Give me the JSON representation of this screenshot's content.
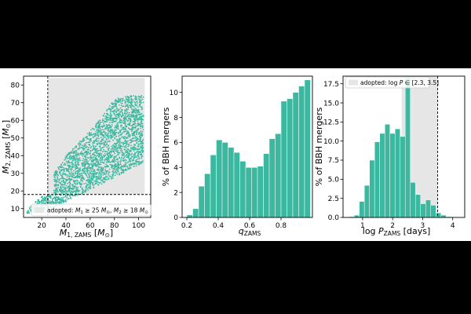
{
  "figure": {
    "background": "#000000",
    "panel_background": "#ffffff"
  },
  "chart_data": [
    {
      "type": "scatter",
      "xlabel": "M1,ZAMS [M⊙]",
      "ylabel": "M2,ZAMS [M⊙]",
      "xlim": [
        5,
        110
      ],
      "ylim": [
        5,
        85
      ],
      "xticks": [
        20,
        40,
        60,
        80,
        100
      ],
      "yticks": [
        10,
        20,
        30,
        40,
        50,
        60,
        70,
        80
      ],
      "color": "#3cb8a0",
      "adopted_region": {
        "x": [
          25,
          105
        ],
        "y": [
          18,
          84
        ],
        "color": "#e6e6e6"
      },
      "cut_lines": {
        "x": 25,
        "y": 18
      },
      "legend": {
        "text": "adopted: M1 ≥ 25 M⊙, M2 ≥ 18 M⊙",
        "loc": "lower right"
      },
      "point_clouds": [
        {
          "name": "main wedge",
          "polygon": [
            [
              30,
              12
            ],
            [
              35,
              12
            ],
            [
              104,
              36
            ],
            [
              104,
              74
            ],
            [
              92,
              74
            ],
            [
              80,
              72
            ],
            [
              70,
              62
            ],
            [
              60,
              54
            ],
            [
              50,
              47
            ],
            [
              40,
              40
            ],
            [
              30,
              30
            ]
          ]
        },
        {
          "name": "lower tail",
          "polygon": [
            [
              7,
              7
            ],
            [
              14,
              8
            ],
            [
              24,
              10
            ],
            [
              36,
              12
            ],
            [
              40,
              14
            ],
            [
              30,
              18
            ],
            [
              20,
              17
            ],
            [
              10,
              11
            ]
          ]
        }
      ]
    },
    {
      "type": "bar",
      "xlabel": "qZAMS",
      "ylabel": "% of BBH mergers",
      "xlim": [
        0.17,
        1.0
      ],
      "ylim": [
        0,
        11.3
      ],
      "xticks": [
        0.2,
        0.4,
        0.6,
        0.8
      ],
      "yticks": [
        0,
        2,
        4,
        6,
        8,
        10
      ],
      "color": "#3cb8a0",
      "bin_width": 0.0375,
      "bin_starts": [
        0.2,
        0.2375,
        0.275,
        0.3125,
        0.35,
        0.3875,
        0.425,
        0.4625,
        0.5,
        0.5375,
        0.575,
        0.6125,
        0.65,
        0.6875,
        0.725,
        0.7625,
        0.8,
        0.8375,
        0.875,
        0.9125,
        0.95
      ],
      "values": [
        0.2,
        0.7,
        2.5,
        3.5,
        5.0,
        6.2,
        6.0,
        5.6,
        5.2,
        4.5,
        4.0,
        4.0,
        4.1,
        5.1,
        6.3,
        6.7,
        9.3,
        9.5,
        10.0,
        10.5,
        11.0
      ]
    },
    {
      "type": "bar",
      "xlabel": "log PZAMS [days]",
      "ylabel": "% of BBH mergers",
      "xlim": [
        0.35,
        4.4
      ],
      "ylim": [
        0,
        18.5
      ],
      "xticks": [
        1,
        2,
        3,
        4
      ],
      "yticks": [
        0.0,
        2.5,
        5.0,
        7.5,
        10.0,
        12.5,
        15.0,
        17.5
      ],
      "color": "#3cb8a0",
      "adopted_region": {
        "x": [
          2.3,
          3.5
        ],
        "color": "#e6e6e6"
      },
      "cut_line": 3.5,
      "legend": {
        "text": "adopted: log P ∈ [2.3, 3.5]",
        "loc": "upper left"
      },
      "bin_width": 0.17,
      "bin_starts": [
        0.55,
        0.72,
        0.89,
        1.06,
        1.23,
        1.4,
        1.57,
        1.74,
        1.91,
        2.08,
        2.25,
        2.42,
        2.59,
        2.76,
        2.93,
        3.1,
        3.27,
        3.44,
        3.61,
        3.78
      ],
      "values": [
        0.1,
        0.3,
        2.1,
        4.2,
        7.5,
        9.9,
        11.0,
        12.2,
        11.0,
        11.6,
        10.6,
        18.3,
        4.6,
        3.0,
        1.8,
        2.3,
        1.6,
        0.6,
        0.3,
        0.1
      ]
    }
  ]
}
